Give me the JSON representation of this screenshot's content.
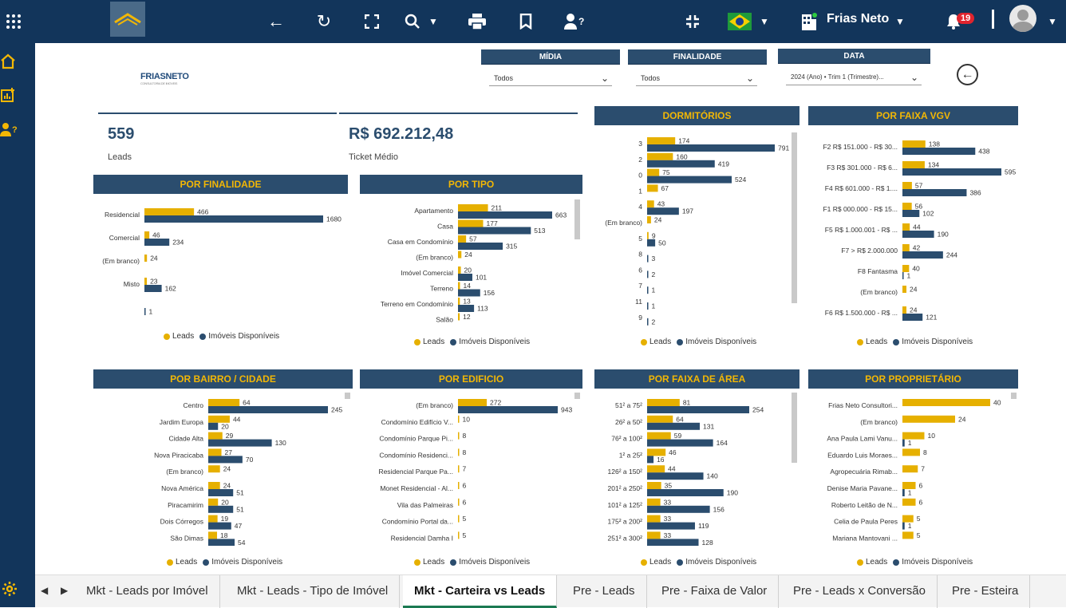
{
  "top_bar": {
    "user_name": "Frias Neto",
    "notification_count": "19",
    "icons": [
      "apps-grid-icon",
      "back-arrow-icon",
      "reload-icon",
      "fullscreen-icon",
      "search-icon",
      "print-icon",
      "bookmark-icon",
      "user-help-icon",
      "collapse-icon",
      "brazil-flag-icon",
      "building-icon",
      "bell-icon",
      "avatar-icon"
    ]
  },
  "sidebar": {
    "icons": [
      "home-icon",
      "report-add-icon",
      "user-help-icon",
      "settings-icon"
    ]
  },
  "logo": {
    "text": "FRIASNETO",
    "sub": "CONSULTORIA DE IMOVEIS"
  },
  "filters": [
    {
      "label": "MÍDIA",
      "value": "Todos"
    },
    {
      "label": "FINALIDADE",
      "value": "Todos"
    },
    {
      "label": "DATA",
      "value": "2024 (Ano) • Trim 1 (Trimestre)..."
    }
  ],
  "kpis": [
    {
      "value": "559",
      "label": "Leads"
    },
    {
      "value": "R$ 692.212,48",
      "label": "Ticket Médio"
    }
  ],
  "legend": {
    "leads": "Leads",
    "imoveis": "Imóveis Disponíveis"
  },
  "colors": {
    "leads": "#e6b000",
    "imoveis": "#2b4d6e",
    "header": "#2b4d6e",
    "header_text": "#f2b705",
    "topbar": "#12355b"
  },
  "chart_data": [
    {
      "id": "finalidade",
      "type": "bar",
      "title": "POR FINALIDADE",
      "categories": [
        "Residencial",
        "Comercial",
        "(Em branco)",
        "Misto",
        ""
      ],
      "series": [
        {
          "name": "Leads",
          "values": [
            466,
            46,
            24,
            23,
            null
          ]
        },
        {
          "name": "Imóveis Disponíveis",
          "values": [
            1680,
            234,
            null,
            162,
            1
          ]
        }
      ]
    },
    {
      "id": "tipo",
      "type": "bar",
      "title": "POR TIPO",
      "categories": [
        "Apartamento",
        "Casa",
        "Casa em Condomínio",
        "(Em branco)",
        "Imóvel Comercial",
        "Terreno",
        "Terreno em Condomínio",
        "Salão"
      ],
      "series": [
        {
          "name": "Leads",
          "values": [
            211,
            177,
            57,
            24,
            20,
            14,
            13,
            12
          ]
        },
        {
          "name": "Imóveis Disponíveis",
          "values": [
            663,
            513,
            315,
            null,
            101,
            156,
            113,
            null
          ]
        }
      ]
    },
    {
      "id": "dormitorios",
      "type": "bar",
      "title": "DORMITÓRIOS",
      "categories": [
        "3",
        "2",
        "0",
        "1",
        "4",
        "(Em branco)",
        "5",
        "8",
        "6",
        "7",
        "11",
        "9"
      ],
      "series": [
        {
          "name": "Leads",
          "values": [
            174,
            160,
            75,
            67,
            43,
            24,
            9,
            null,
            null,
            null,
            null,
            null
          ]
        },
        {
          "name": "Imóveis Disponíveis",
          "values": [
            791,
            419,
            524,
            null,
            197,
            null,
            50,
            3,
            2,
            1,
            1,
            2
          ]
        }
      ]
    },
    {
      "id": "vgv",
      "type": "bar",
      "title": "POR FAIXA VGV",
      "categories": [
        "F2 R$ 151.000 - R$ 30...",
        "F3 R$ 301.000 - R$ 6...",
        "F4 R$ 601.000 - R$ 1....",
        "F1 R$ 000.000 - R$ 15...",
        "F5 R$ 1.000.001 - R$ ...",
        "F7 > R$ 2.000.000",
        "F8 Fantasma",
        "(Em branco)",
        "F6 R$ 1.500.000 - R$ ..."
      ],
      "series": [
        {
          "name": "Leads",
          "values": [
            138,
            134,
            57,
            56,
            44,
            42,
            40,
            24,
            24
          ]
        },
        {
          "name": "Imóveis Disponíveis",
          "values": [
            438,
            595,
            386,
            102,
            190,
            244,
            1,
            null,
            121
          ]
        }
      ]
    },
    {
      "id": "bairro",
      "type": "bar",
      "title": "POR BAIRRO / CIDADE",
      "categories": [
        "Centro",
        "Jardim Europa",
        "Cidade Alta",
        "Nova Piracicaba",
        "(Em branco)",
        "Nova América",
        "Piracamirim",
        "Dois Córregos",
        "São Dimas"
      ],
      "series": [
        {
          "name": "Leads",
          "values": [
            64,
            44,
            29,
            27,
            24,
            24,
            20,
            19,
            18
          ]
        },
        {
          "name": "Imóveis Disponíveis",
          "values": [
            245,
            20,
            130,
            70,
            null,
            51,
            51,
            47,
            54
          ]
        }
      ]
    },
    {
      "id": "edificio",
      "type": "bar",
      "title": "POR EDIFICIO",
      "categories": [
        "(Em branco)",
        "Condomínio Edifício V...",
        "Condomínio Parque Pi...",
        "Condomínio Residenci...",
        "Residencial Parque Pa...",
        "Monet Residencial - Al...",
        "Vila das Palmeiras",
        "Condomínio Portal da...",
        "Residencial Damha I"
      ],
      "series": [
        {
          "name": "Leads",
          "values": [
            272,
            10,
            8,
            8,
            7,
            6,
            6,
            5,
            5
          ]
        },
        {
          "name": "Imóveis Disponíveis",
          "values": [
            943,
            null,
            null,
            null,
            null,
            null,
            null,
            null,
            null
          ]
        }
      ]
    },
    {
      "id": "area",
      "type": "bar",
      "title": "POR FAIXA DE ÁREA",
      "categories": [
        "51² a 75²",
        "26² a 50²",
        "76² a 100²",
        "1² a 25²",
        "126² a 150²",
        "201² a 250²",
        "101² a 125²",
        "175² a 200²",
        "251² a 300²"
      ],
      "series": [
        {
          "name": "Leads",
          "values": [
            81,
            64,
            59,
            46,
            44,
            35,
            33,
            33,
            33
          ]
        },
        {
          "name": "Imóveis Disponíveis",
          "values": [
            254,
            131,
            164,
            16,
            140,
            190,
            156,
            119,
            128
          ]
        }
      ]
    },
    {
      "id": "proprietario",
      "type": "bar",
      "title": "POR PROPRIETÁRIO",
      "categories": [
        "Frias Neto Consultori...",
        "(Em branco)",
        "Ana Paula Lami Vanu...",
        "Eduardo Luis Moraes...",
        "Agropecuária Rimab...",
        "Denise Maria Pavane...",
        "Roberto Leitão de N...",
        "Celia de Paula Peres",
        "Mariana Mantovani ..."
      ],
      "series": [
        {
          "name": "Leads",
          "values": [
            40,
            24,
            10,
            8,
            7,
            6,
            6,
            5,
            5
          ]
        },
        {
          "name": "Imóveis Disponíveis",
          "values": [
            null,
            null,
            1,
            null,
            null,
            1,
            null,
            1,
            null
          ]
        }
      ]
    }
  ],
  "tabs": [
    {
      "label": "Mkt - Leads por Imóvel",
      "active": false
    },
    {
      "label": "Mkt - Leads - Tipo de Imóvel",
      "active": false
    },
    {
      "label": "Mkt - Carteira vs Leads",
      "active": true
    },
    {
      "label": "Pre - Leads",
      "active": false
    },
    {
      "label": "Pre - Faixa de Valor",
      "active": false
    },
    {
      "label": "Pre - Leads x Conversão",
      "active": false
    },
    {
      "label": "Pre - Esteira",
      "active": false
    }
  ]
}
